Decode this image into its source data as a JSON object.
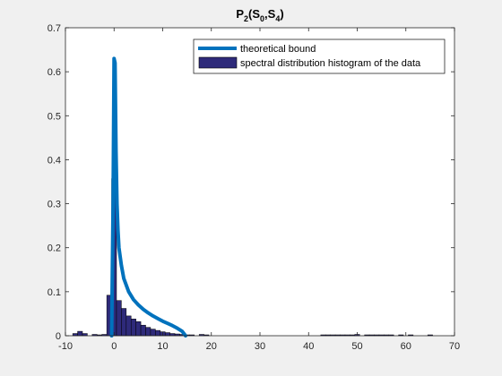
{
  "chart_data": {
    "type": "bar",
    "title": {
      "base": "P",
      "sub1": "2",
      "mid": "(S",
      "sub2": "0",
      "sep": ",S",
      "sub3": "4",
      "end": ")"
    },
    "xlabel": "",
    "ylabel": "",
    "xlim": [
      -10,
      70
    ],
    "ylim": [
      0,
      0.7
    ],
    "xticks": [
      "-10",
      "0",
      "10",
      "20",
      "30",
      "40",
      "50",
      "60",
      "70"
    ],
    "yticks": [
      "0",
      "0.1",
      "0.2",
      "0.3",
      "0.4",
      "0.5",
      "0.6",
      "0.7"
    ],
    "grid": false,
    "legend_position": "top-right",
    "series": [
      {
        "name": "theoretical bound",
        "kind": "line",
        "color": "#0072bd",
        "x": [
          -0.5,
          -0.2,
          0.0,
          0.2,
          0.4,
          0.6,
          0.8,
          1.0,
          1.5,
          2.0,
          3.0,
          4.0,
          5.0,
          6.0,
          7.0,
          8.0,
          9.0,
          10.0,
          11.0,
          12.0,
          13.0,
          14.0,
          14.7
        ],
        "y": [
          0.0,
          0.3,
          0.63,
          0.62,
          0.42,
          0.3,
          0.24,
          0.2,
          0.16,
          0.13,
          0.1,
          0.082,
          0.07,
          0.06,
          0.052,
          0.045,
          0.039,
          0.033,
          0.028,
          0.023,
          0.017,
          0.01,
          0.0
        ]
      },
      {
        "name": "spectral distribution histogram of the  data",
        "kind": "histogram",
        "color": "#2e2a7a",
        "bin_width": 1,
        "x": [
          -8,
          -7,
          -6,
          -4,
          -3,
          -2,
          -1,
          0,
          1,
          2,
          3,
          4,
          5,
          6,
          7,
          8,
          9,
          10,
          11,
          12,
          13,
          14,
          15,
          16,
          18,
          19,
          43,
          44,
          45,
          46,
          47,
          48,
          49,
          50,
          52,
          53,
          54,
          55,
          56,
          57,
          59,
          61,
          65
        ],
        "values": [
          0.005,
          0.01,
          0.005,
          0.003,
          0.002,
          0.003,
          0.092,
          0.357,
          0.08,
          0.062,
          0.045,
          0.038,
          0.032,
          0.024,
          0.019,
          0.015,
          0.012,
          0.009,
          0.007,
          0.005,
          0.004,
          0.003,
          0.002,
          0.002,
          0.003,
          0.002,
          0.002,
          0.002,
          0.002,
          0.002,
          0.002,
          0.002,
          0.002,
          0.003,
          0.002,
          0.002,
          0.002,
          0.002,
          0.002,
          0.002,
          0.002,
          0.002,
          0.002
        ]
      }
    ]
  }
}
